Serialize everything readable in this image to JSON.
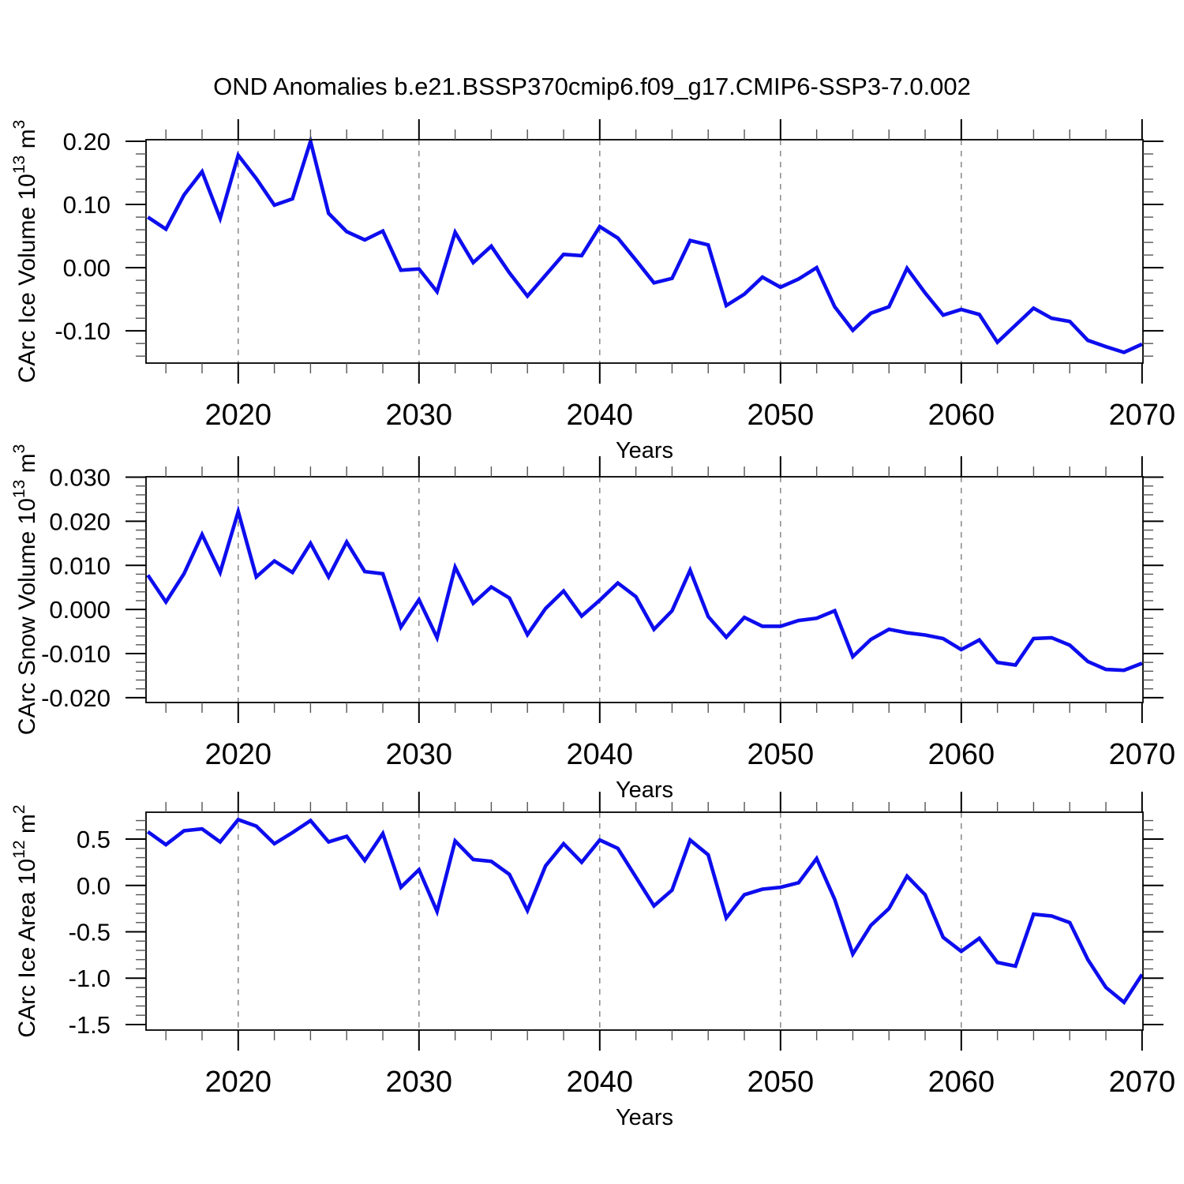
{
  "title": "OND Anomalies b.e21.BSSP370cmip6.f09_g17.CMIP6-SSP3-7.0.002",
  "line_color": "#0d0dee",
  "grid_color": "#808080",
  "axis_color": "#000000",
  "chart_data": [
    {
      "type": "line",
      "ylabel": "CArc Ice Volume 10^13 m^3",
      "ylabel_parts": [
        {
          "t": "CArc Ice Volume 10"
        },
        {
          "t": "13",
          "sup": true
        },
        {
          "t": " m"
        },
        {
          "t": "3",
          "sup": true
        }
      ],
      "xlabel": "Years",
      "x": [
        2015,
        2016,
        2017,
        2018,
        2019,
        2020,
        2021,
        2022,
        2023,
        2024,
        2025,
        2026,
        2027,
        2028,
        2029,
        2030,
        2031,
        2032,
        2033,
        2034,
        2035,
        2036,
        2037,
        2038,
        2039,
        2040,
        2041,
        2042,
        2043,
        2044,
        2045,
        2046,
        2047,
        2048,
        2049,
        2050,
        2051,
        2052,
        2053,
        2054,
        2055,
        2056,
        2057,
        2058,
        2059,
        2060,
        2061,
        2062,
        2063,
        2064,
        2065,
        2066,
        2067,
        2068,
        2069,
        2070
      ],
      "values": [
        0.08,
        0.061,
        0.115,
        0.152,
        0.078,
        0.178,
        0.141,
        0.099,
        0.109,
        0.2,
        0.086,
        0.057,
        0.044,
        0.058,
        -0.004,
        -0.002,
        -0.038,
        0.056,
        0.008,
        0.034,
        -0.008,
        -0.045,
        -0.012,
        0.021,
        0.019,
        0.065,
        0.047,
        0.012,
        -0.024,
        -0.017,
        0.043,
        0.036,
        -0.06,
        -0.042,
        -0.015,
        -0.031,
        -0.018,
        0.0,
        -0.062,
        -0.099,
        -0.072,
        -0.062,
        -0.001,
        -0.04,
        -0.075,
        -0.066,
        -0.074,
        -0.118,
        -0.091,
        -0.064,
        -0.08,
        -0.085,
        -0.115,
        -0.125,
        -0.134,
        -0.121
      ],
      "xlim": [
        2014.9,
        2070.05
      ],
      "ylim": [
        -0.151,
        0.2025
      ],
      "yticks": {
        "values": [
          0.2,
          0.1,
          0.0,
          -0.1
        ],
        "labels": [
          "0.20",
          "0.10",
          "0.00",
          "-0.10"
        ],
        "minor_step": 0.02
      },
      "xticks": {
        "values": [
          2020,
          2030,
          2040,
          2050,
          2060,
          2070
        ],
        "labels": [
          "2020",
          "2030",
          "2040",
          "2050",
          "2060",
          "2070"
        ],
        "minor_step": 2
      },
      "gridlines_x": [
        2020,
        2030,
        2040,
        2050,
        2060
      ],
      "grid": "vertical-dashed",
      "legend": "none"
    },
    {
      "type": "line",
      "ylabel": "CArc Snow Volume 10^13 m^3",
      "ylabel_parts": [
        {
          "t": "CArc Snow Volume 10"
        },
        {
          "t": "13",
          "sup": true
        },
        {
          "t": " m"
        },
        {
          "t": "3",
          "sup": true
        }
      ],
      "xlabel": "Years",
      "x": [
        2015,
        2016,
        2017,
        2018,
        2019,
        2020,
        2021,
        2022,
        2023,
        2024,
        2025,
        2026,
        2027,
        2028,
        2029,
        2030,
        2031,
        2032,
        2033,
        2034,
        2035,
        2036,
        2037,
        2038,
        2039,
        2040,
        2041,
        2042,
        2043,
        2044,
        2045,
        2046,
        2047,
        2048,
        2049,
        2050,
        2051,
        2052,
        2053,
        2054,
        2055,
        2056,
        2057,
        2058,
        2059,
        2060,
        2061,
        2062,
        2063,
        2064,
        2065,
        2066,
        2067,
        2068,
        2069,
        2070
      ],
      "values": [
        0.0078,
        0.0017,
        0.0081,
        0.017,
        0.0084,
        0.0222,
        0.0074,
        0.011,
        0.0084,
        0.015,
        0.0074,
        0.0153,
        0.0086,
        0.0081,
        -0.004,
        0.0022,
        -0.0064,
        0.0096,
        0.0014,
        0.0051,
        0.0026,
        -0.0057,
        0.0002,
        0.0042,
        -0.0015,
        0.0021,
        0.006,
        0.0029,
        -0.0045,
        -0.0003,
        0.0089,
        -0.0016,
        -0.0063,
        -0.0018,
        -0.0038,
        -0.0038,
        -0.0025,
        -0.002,
        -0.0003,
        -0.0107,
        -0.0068,
        -0.0045,
        -0.0053,
        -0.0058,
        -0.0066,
        -0.0091,
        -0.0069,
        -0.012,
        -0.0126,
        -0.0066,
        -0.0064,
        -0.0081,
        -0.0118,
        -0.0136,
        -0.0138,
        -0.0122
      ],
      "xlim": [
        2014.9,
        2070.05
      ],
      "ylim": [
        -0.0211,
        0.0301
      ],
      "yticks": {
        "values": [
          0.03,
          0.02,
          0.01,
          0.0,
          -0.01,
          -0.02
        ],
        "labels": [
          "0.030",
          "0.020",
          "0.010",
          "0.000",
          "-0.010",
          "-0.020"
        ],
        "minor_step": 0.002
      },
      "xticks": {
        "values": [
          2020,
          2030,
          2040,
          2050,
          2060,
          2070
        ],
        "labels": [
          "2020",
          "2030",
          "2040",
          "2050",
          "2060",
          "2070"
        ],
        "minor_step": 2
      },
      "gridlines_x": [
        2020,
        2030,
        2040,
        2050,
        2060
      ],
      "grid": "vertical-dashed",
      "legend": "none"
    },
    {
      "type": "line",
      "ylabel": "CArc Ice Area 10^12 m^2",
      "ylabel_parts": [
        {
          "t": "CArc Ice Area 10"
        },
        {
          "t": "12",
          "sup": true
        },
        {
          "t": " m"
        },
        {
          "t": "2",
          "sup": true
        }
      ],
      "xlabel": "Years",
      "x": [
        2015,
        2016,
        2017,
        2018,
        2019,
        2020,
        2021,
        2022,
        2023,
        2024,
        2025,
        2026,
        2027,
        2028,
        2029,
        2030,
        2031,
        2032,
        2033,
        2034,
        2035,
        2036,
        2037,
        2038,
        2039,
        2040,
        2041,
        2042,
        2043,
        2044,
        2045,
        2046,
        2047,
        2048,
        2049,
        2050,
        2051,
        2052,
        2053,
        2054,
        2055,
        2056,
        2057,
        2058,
        2059,
        2060,
        2061,
        2062,
        2063,
        2064,
        2065,
        2066,
        2067,
        2068,
        2069,
        2070
      ],
      "values": [
        0.58,
        0.44,
        0.59,
        0.61,
        0.47,
        0.71,
        0.64,
        0.45,
        0.57,
        0.7,
        0.47,
        0.53,
        0.27,
        0.56,
        -0.02,
        0.17,
        -0.28,
        0.48,
        0.28,
        0.26,
        0.12,
        -0.27,
        0.21,
        0.45,
        0.25,
        0.49,
        0.4,
        0.09,
        -0.22,
        -0.05,
        0.49,
        0.33,
        -0.35,
        -0.1,
        -0.04,
        -0.02,
        0.03,
        0.29,
        -0.15,
        -0.74,
        -0.43,
        -0.25,
        0.1,
        -0.1,
        -0.56,
        -0.71,
        -0.57,
        -0.83,
        -0.87,
        -0.31,
        -0.33,
        -0.4,
        -0.8,
        -1.1,
        -1.26,
        -0.96
      ],
      "xlim": [
        2014.9,
        2070.05
      ],
      "ylim": [
        -1.56,
        0.79
      ],
      "yticks": {
        "values": [
          0.5,
          0.0,
          -0.5,
          -1.0,
          -1.5
        ],
        "labels": [
          "0.5",
          "0.0",
          "-0.5",
          "-1.0",
          "-1.5"
        ],
        "minor_step": 0.1
      },
      "xticks": {
        "values": [
          2020,
          2030,
          2040,
          2050,
          2060,
          2070
        ],
        "labels": [
          "2020",
          "2030",
          "2040",
          "2050",
          "2060",
          "2070"
        ],
        "minor_step": 2
      },
      "gridlines_x": [
        2020,
        2030,
        2040,
        2050,
        2060
      ],
      "grid": "vertical-dashed",
      "legend": "none"
    }
  ]
}
